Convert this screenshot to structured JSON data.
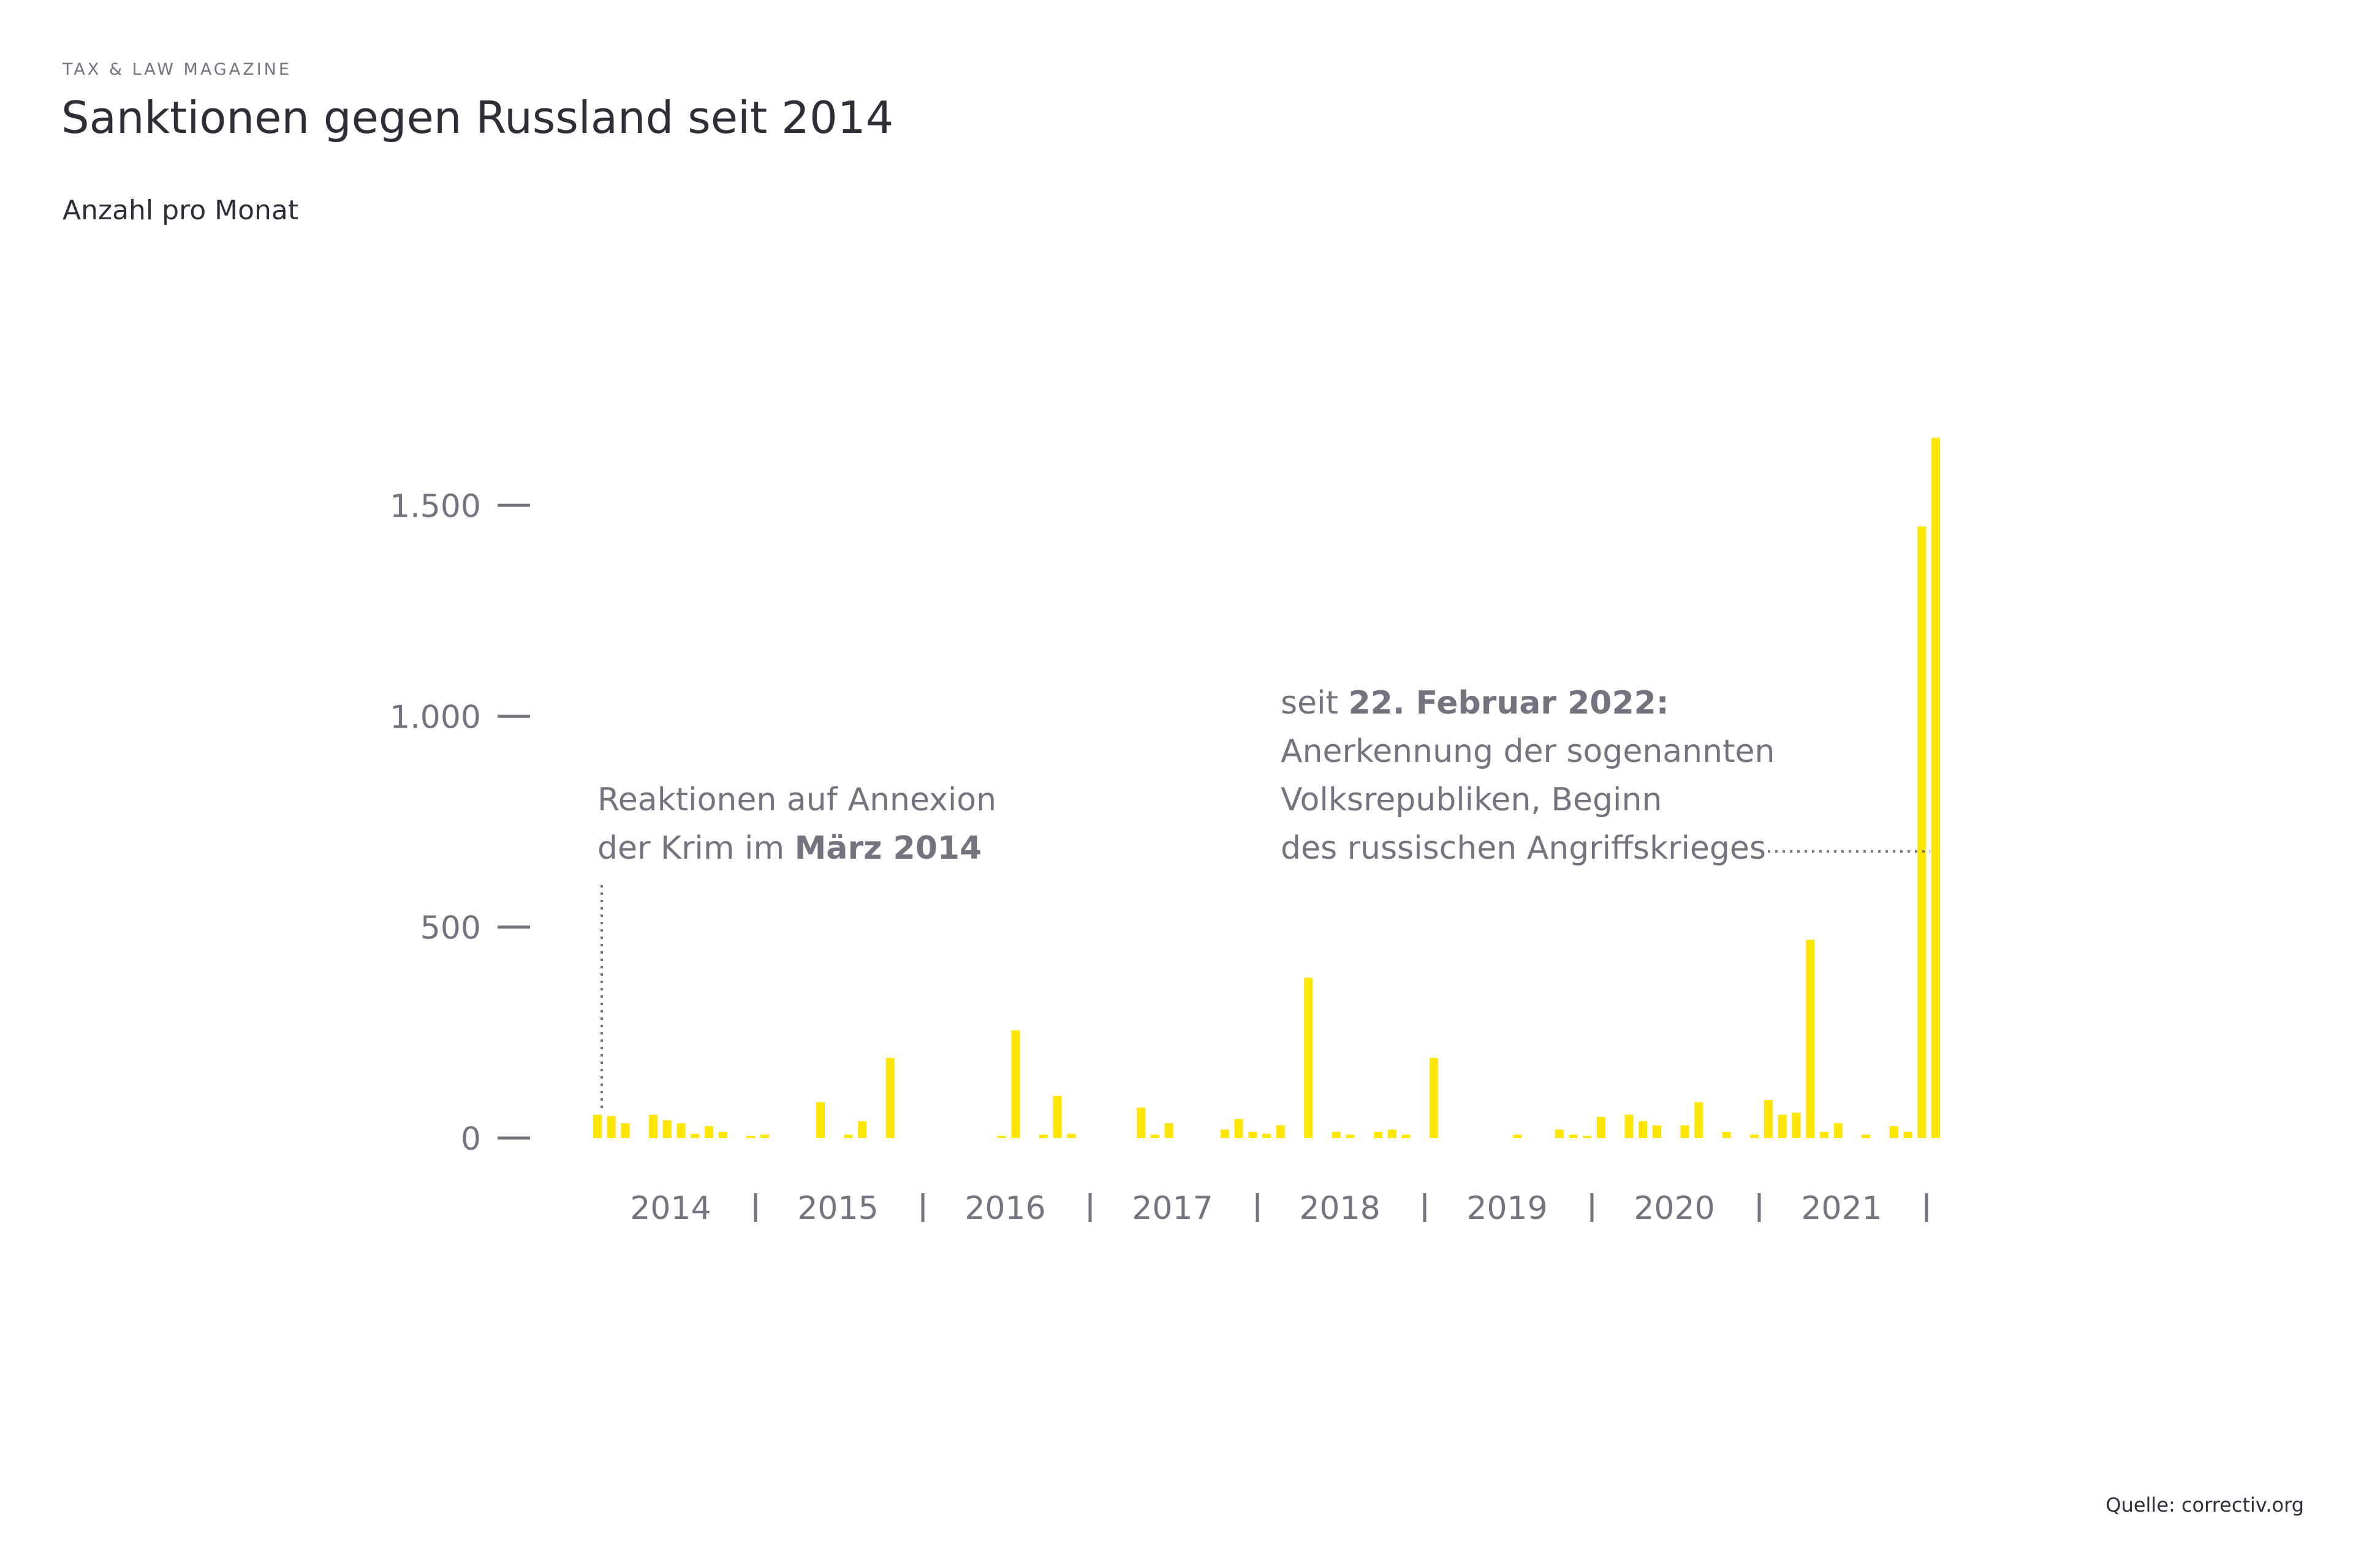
{
  "header": {
    "kicker": "TAX & LAW MAGAZINE",
    "title": "Sanktionen gegen Russland seit 2014",
    "subtitle": "Anzahl pro Monat"
  },
  "footer": {
    "source": "Quelle: correctiv.org"
  },
  "colors": {
    "bar": "#ffe600",
    "text": "#2e2e38",
    "muted": "#747480"
  },
  "annotations": {
    "crimea": {
      "line1": "Reaktionen auf Annexion",
      "line2_pre": "der Krim im ",
      "line2_bold": "März 2014"
    },
    "war": {
      "line1_pre": "seit ",
      "line1_bold": "22. Februar 2022:",
      "line2": "Anerkennung der sogenannten",
      "line3": "Volksrepubliken, Beginn",
      "line4": "des russischen Angriffskrieges"
    }
  },
  "chart_data": {
    "type": "bar",
    "title": "Sanktionen gegen Russland seit 2014",
    "ylabel": "Anzahl pro Monat",
    "ylim": [
      0,
      1700
    ],
    "y_ticks": [
      {
        "value": 0,
        "label": "0"
      },
      {
        "value": 500,
        "label": "500"
      },
      {
        "value": 1000,
        "label": "1.000"
      },
      {
        "value": 1500,
        "label": "1.500"
      }
    ],
    "x_year_labels": [
      "2014",
      "2015",
      "2016",
      "2017",
      "2018",
      "2019",
      "2020",
      "2021"
    ],
    "series": [
      {
        "name": "Sanktionen",
        "points": [
          {
            "month": 0,
            "value": 55
          },
          {
            "month": 1,
            "value": 52
          },
          {
            "month": 2,
            "value": 35
          },
          {
            "month": 4,
            "value": 55
          },
          {
            "month": 5,
            "value": 42
          },
          {
            "month": 6,
            "value": 35
          },
          {
            "month": 7,
            "value": 10
          },
          {
            "month": 8,
            "value": 28
          },
          {
            "month": 9,
            "value": 15
          },
          {
            "month": 11,
            "value": 5
          },
          {
            "month": 12,
            "value": 8
          },
          {
            "month": 16,
            "value": 85
          },
          {
            "month": 18,
            "value": 8
          },
          {
            "month": 19,
            "value": 40
          },
          {
            "month": 21,
            "value": 190
          },
          {
            "month": 29,
            "value": 5
          },
          {
            "month": 30,
            "value": 255
          },
          {
            "month": 32,
            "value": 8
          },
          {
            "month": 33,
            "value": 100
          },
          {
            "month": 34,
            "value": 10
          },
          {
            "month": 39,
            "value": 72
          },
          {
            "month": 40,
            "value": 8
          },
          {
            "month": 41,
            "value": 35
          },
          {
            "month": 45,
            "value": 20
          },
          {
            "month": 46,
            "value": 45
          },
          {
            "month": 47,
            "value": 15
          },
          {
            "month": 48,
            "value": 10
          },
          {
            "month": 49,
            "value": 30
          },
          {
            "month": 51,
            "value": 380
          },
          {
            "month": 53,
            "value": 15
          },
          {
            "month": 54,
            "value": 8
          },
          {
            "month": 56,
            "value": 15
          },
          {
            "month": 57,
            "value": 20
          },
          {
            "month": 58,
            "value": 8
          },
          {
            "month": 60,
            "value": 190
          },
          {
            "month": 66,
            "value": 8
          },
          {
            "month": 69,
            "value": 20
          },
          {
            "month": 70,
            "value": 8
          },
          {
            "month": 71,
            "value": 5
          },
          {
            "month": 72,
            "value": 50
          },
          {
            "month": 74,
            "value": 55
          },
          {
            "month": 75,
            "value": 40
          },
          {
            "month": 76,
            "value": 30
          },
          {
            "month": 78,
            "value": 30
          },
          {
            "month": 79,
            "value": 85
          },
          {
            "month": 81,
            "value": 15
          },
          {
            "month": 83,
            "value": 8
          },
          {
            "month": 84,
            "value": 90
          },
          {
            "month": 85,
            "value": 55
          },
          {
            "month": 86,
            "value": 60
          },
          {
            "month": 87,
            "value": 470
          },
          {
            "month": 88,
            "value": 15
          },
          {
            "month": 89,
            "value": 35
          },
          {
            "month": 91,
            "value": 8
          },
          {
            "month": 93,
            "value": 28
          },
          {
            "month": 94,
            "value": 15
          },
          {
            "month": 95,
            "value": 1450
          },
          {
            "month": 96,
            "value": 1660
          }
        ]
      }
    ]
  }
}
